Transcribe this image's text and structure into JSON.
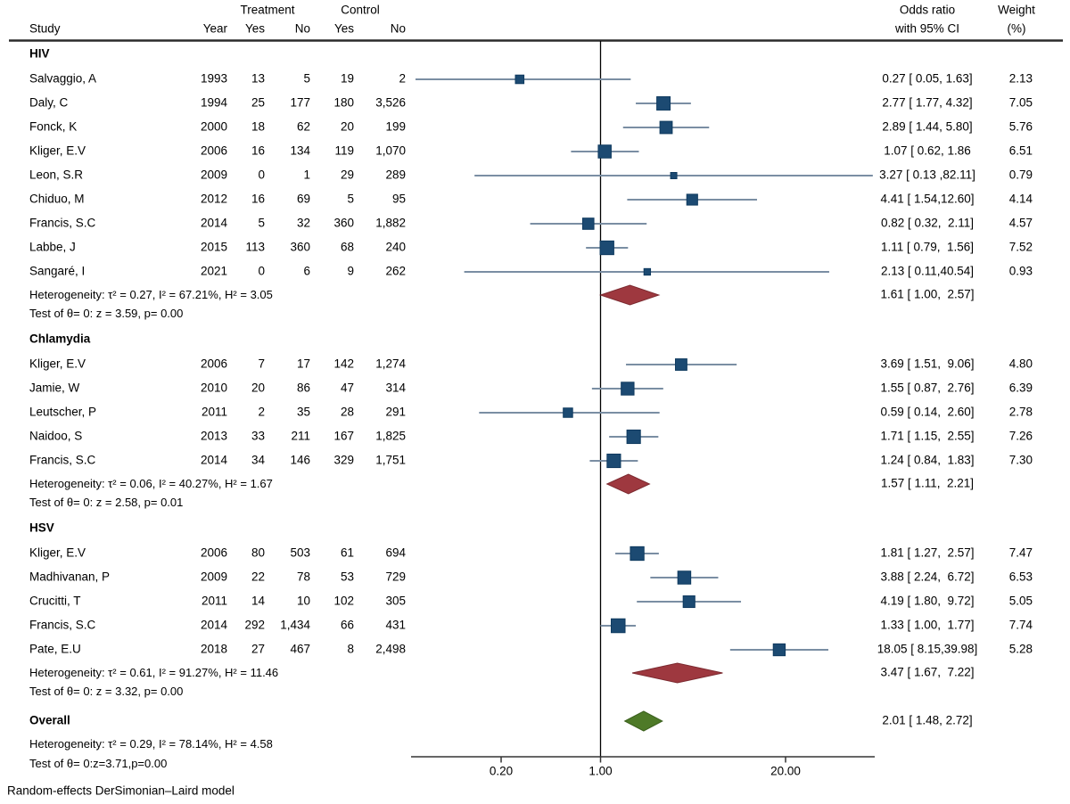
{
  "header": {
    "study": "Study",
    "year": "Year",
    "treatment": "Treatment",
    "control": "Control",
    "yes1": "Yes",
    "no1": "No",
    "yes2": "Yes",
    "no2": "No",
    "or_line1": "Odds ratio",
    "or_line2": "with 95% CI",
    "weight_line1": "Weight",
    "weight_line2": "(%)"
  },
  "footer": {
    "model_note": "Random-effects DerSimonian–Laird model"
  },
  "colors": {
    "square": "#1c4a72",
    "square_border": "#0f3a5f",
    "ci_line": "#7a8ea3",
    "group_diamond": "#9e383f",
    "group_diamond_border": "#7c2a30",
    "overall_diamond": "#4e7a28",
    "overall_diamond_border": "#3c611e",
    "ref_line": "#000000",
    "axis_line": "#333333",
    "header_rule": "#2b2b2b"
  },
  "chart_data": {
    "type": "forest",
    "x_scale": "log10",
    "axis": {
      "tick_labels": [
        "0.20",
        "1.00",
        "20.00"
      ],
      "tick_values": [
        0.2,
        1.0,
        20.0
      ],
      "ref_value": 1.0
    },
    "groups": [
      {
        "name": "HIV",
        "studies": [
          {
            "study": "Salvaggio, A",
            "year": "1993",
            "treatment_yes": "13",
            "treatment_no": "5",
            "control_yes": "19",
            "control_no": "2",
            "or": 0.27,
            "ci_low": 0.05,
            "ci_high": 1.63,
            "or_label": "0.27 [ 0.05, 1.63]",
            "weight": "2.13"
          },
          {
            "study": "Daly, C",
            "year": "1994",
            "treatment_yes": "25",
            "treatment_no": "177",
            "control_yes": "180",
            "control_no": "3,526",
            "or": 2.77,
            "ci_low": 1.77,
            "ci_high": 4.32,
            "or_label": "2.77 [ 1.77, 4.32]",
            "weight": "7.05"
          },
          {
            "study": "Fonck, K",
            "year": "2000",
            "treatment_yes": "18",
            "treatment_no": "62",
            "control_yes": "20",
            "control_no": "199",
            "or": 2.89,
            "ci_low": 1.44,
            "ci_high": 5.8,
            "or_label": "2.89 [ 1.44, 5.80]",
            "weight": "5.76"
          },
          {
            "study": "Kliger, E.V",
            "year": "2006",
            "treatment_yes": "16",
            "treatment_no": "134",
            "control_yes": "119",
            "control_no": "1,070",
            "or": 1.07,
            "ci_low": 0.62,
            "ci_high": 1.86,
            "or_label": "1.07 [ 0.62, 1.86",
            "weight": "6.51"
          },
          {
            "study": "Leon, S.R",
            "year": "2009",
            "treatment_yes": "0",
            "treatment_no": "1",
            "control_yes": "29",
            "control_no": "289",
            "or": 3.27,
            "ci_low": 0.13,
            "ci_high": 82.11,
            "or_label": "3.27 [ 0.13 ,82.11]",
            "weight": "0.79"
          },
          {
            "study": "Chiduo, M",
            "year": "2012",
            "treatment_yes": "16",
            "treatment_no": "69",
            "control_yes": "5",
            "control_no": "95",
            "or": 4.41,
            "ci_low": 1.54,
            "ci_high": 12.6,
            "or_label": "4.41 [ 1.54,12.60]",
            "weight": "4.14"
          },
          {
            "study": "Francis, S.C",
            "year": "2014",
            "treatment_yes": "5",
            "treatment_no": "32",
            "control_yes": "360",
            "control_no": "1,882",
            "or": 0.82,
            "ci_low": 0.32,
            "ci_high": 2.11,
            "or_label": "0.82 [ 0.32,  2.11]",
            "weight": "4.57"
          },
          {
            "study": "Labbe, J",
            "year": "2015",
            "treatment_yes": "113",
            "treatment_no": "360",
            "control_yes": "68",
            "control_no": "240",
            "or": 1.11,
            "ci_low": 0.79,
            "ci_high": 1.56,
            "or_label": "1.11 [ 0.79,  1.56]",
            "weight": "7.52"
          },
          {
            "study": "Sangaré, I",
            "year": "2021",
            "treatment_yes": "0",
            "treatment_no": "6",
            "control_yes": "9",
            "control_no": "262",
            "or": 2.13,
            "ci_low": 0.11,
            "ci_high": 40.54,
            "or_label": "2.13 [ 0.11,40.54]",
            "weight": "0.93"
          }
        ],
        "heterogeneity": "Heterogeneity: τ² = 0.27, I² = 67.21%, H² = 3.05",
        "test": "Test of θ= 0: z = 3.59, p= 0.00",
        "summary": {
          "or": 1.61,
          "ci_low": 1.0,
          "ci_high": 2.57,
          "or_label": "1.61 [ 1.00,  2.57]"
        }
      },
      {
        "name": "Chlamydia",
        "studies": [
          {
            "study": "Kliger, E.V",
            "year": "2006",
            "treatment_yes": "7",
            "treatment_no": "17",
            "control_yes": "142",
            "control_no": "1,274",
            "or": 3.69,
            "ci_low": 1.51,
            "ci_high": 9.06,
            "or_label": "3.69 [ 1.51,  9.06]",
            "weight": "4.80"
          },
          {
            "study": "Jamie, W",
            "year": "2010",
            "treatment_yes": "20",
            "treatment_no": "86",
            "control_yes": "47",
            "control_no": "314",
            "or": 1.55,
            "ci_low": 0.87,
            "ci_high": 2.76,
            "or_label": "1.55 [ 0.87,  2.76]",
            "weight": "6.39"
          },
          {
            "study": "Leutscher, P",
            "year": "2011",
            "treatment_yes": "2",
            "treatment_no": "35",
            "control_yes": "28",
            "control_no": "291",
            "or": 0.59,
            "ci_low": 0.14,
            "ci_high": 2.6,
            "or_label": "0.59 [ 0.14,  2.60]",
            "weight": "2.78"
          },
          {
            "study": "Naidoo, S",
            "year": "2013",
            "treatment_yes": "33",
            "treatment_no": "211",
            "control_yes": "167",
            "control_no": "1,825",
            "or": 1.71,
            "ci_low": 1.15,
            "ci_high": 2.55,
            "or_label": "1.71 [ 1.15,  2.55]",
            "weight": "7.26"
          },
          {
            "study": "Francis, S.C",
            "year": "2014",
            "treatment_yes": "34",
            "treatment_no": "146",
            "control_yes": "329",
            "control_no": "1,751",
            "or": 1.24,
            "ci_low": 0.84,
            "ci_high": 1.83,
            "or_label": "1.24 [ 0.84,  1.83]",
            "weight": "7.30"
          }
        ],
        "heterogeneity": "Heterogeneity: τ² = 0.06, I² = 40.27%, H² = 1.67",
        "test": "Test of θ= 0: z = 2.58, p= 0.01",
        "summary": {
          "or": 1.57,
          "ci_low": 1.11,
          "ci_high": 2.21,
          "or_label": "1.57 [ 1.11,  2.21]"
        }
      },
      {
        "name": "HSV",
        "studies": [
          {
            "study": "Kliger, E.V",
            "year": "2006",
            "treatment_yes": "80",
            "treatment_no": "503",
            "control_yes": "61",
            "control_no": "694",
            "or": 1.81,
            "ci_low": 1.27,
            "ci_high": 2.57,
            "or_label": "1.81 [ 1.27,  2.57]",
            "weight": "7.47"
          },
          {
            "study": "Madhivanan, P",
            "year": "2009",
            "treatment_yes": "22",
            "treatment_no": "78",
            "control_yes": "53",
            "control_no": "729",
            "or": 3.88,
            "ci_low": 2.24,
            "ci_high": 6.72,
            "or_label": "3.88 [ 2.24,  6.72]",
            "weight": "6.53"
          },
          {
            "study": "Crucitti, T",
            "year": "2011",
            "treatment_yes": "14",
            "treatment_no": "10",
            "control_yes": "102",
            "control_no": "305",
            "or": 4.19,
            "ci_low": 1.8,
            "ci_high": 9.72,
            "or_label": "4.19 [ 1.80,  9.72]",
            "weight": "5.05"
          },
          {
            "study": "Francis, S.C",
            "year": "2014",
            "treatment_yes": "292",
            "treatment_no": "1,434",
            "control_yes": "66",
            "control_no": "431",
            "or": 1.33,
            "ci_low": 1.0,
            "ci_high": 1.77,
            "or_label": "1.33 [ 1.00,  1.77]",
            "weight": "7.74"
          },
          {
            "study": "Pate, E.U",
            "year": "2018",
            "treatment_yes": "27",
            "treatment_no": "467",
            "control_yes": "8",
            "control_no": "2,498",
            "or": 18.05,
            "ci_low": 8.15,
            "ci_high": 39.98,
            "or_label": "18.05 [ 8.15,39.98]",
            "weight": "5.28"
          }
        ],
        "heterogeneity": "Heterogeneity: τ² = 0.61, I² = 91.27%, H² = 11.46",
        "test": "Test of θ= 0: z = 3.32, p= 0.00",
        "summary": {
          "or": 3.47,
          "ci_low": 1.67,
          "ci_high": 7.22,
          "or_label": "3.47 [ 1.67,  7.22]"
        }
      }
    ],
    "overall": {
      "name": "Overall",
      "heterogeneity": "Heterogeneity: τ² = 0.29, I² = 78.14%, H² = 4.58",
      "test": "Test of θ= 0:z=3.71,p=0.00",
      "summary": {
        "or": 2.01,
        "ci_low": 1.48,
        "ci_high": 2.72,
        "or_label": "2.01 [ 1.48, 2.72]"
      }
    }
  }
}
